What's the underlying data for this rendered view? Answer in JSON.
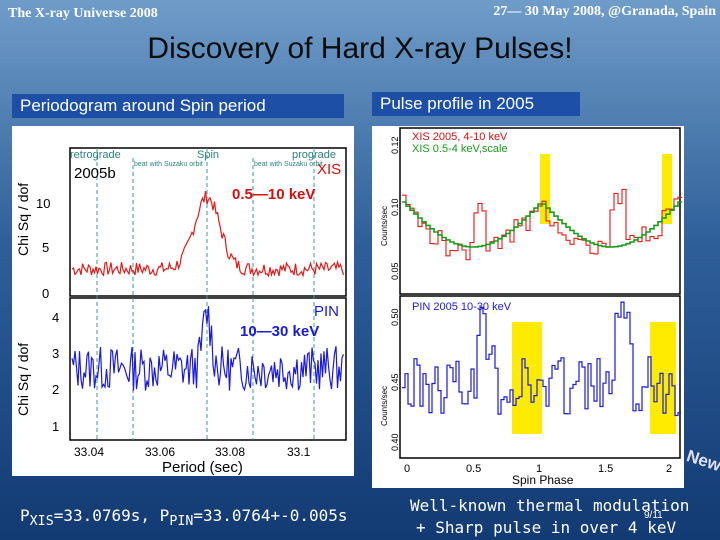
{
  "header": {
    "left": "The X-ray Universe 2008",
    "right": "27— 30 May 2008, @Granada, Spain"
  },
  "slide_title": "Discovery of Hard X-ray Pulses!",
  "left_panel": {
    "label": "Periodogram around Spin period",
    "top": {
      "ylabel": "Chi Sq / dof",
      "tag": "2005b",
      "instrument": "XIS",
      "energy": "0.5—10 keV",
      "yticks": [
        "0",
        "5",
        "10"
      ],
      "markers": {
        "retrograde": "retrograde",
        "spin": "Spin",
        "prograde": "prograde",
        "beat_left": "beat with Suzaku orbit",
        "beat_right": "beat with Suzaku orbit"
      }
    },
    "bottom": {
      "ylabel": "Chi Sq / dof",
      "instrument": "PIN",
      "energy": "10—30 keV",
      "yticks": [
        "1",
        "2",
        "3",
        "4"
      ],
      "xlabel": "Period (sec)",
      "xticks": [
        "33.04",
        "33.06",
        "33.08",
        "33.1"
      ]
    },
    "caption_html": "P<sub>XIS</sub>=33.0769s,  P<sub>PIN</sub>=33.0764+-0.005s"
  },
  "right_panel": {
    "label": "Pulse profile in 2005",
    "top": {
      "legend1": "XIS 2005, 4-10 keV",
      "legend2": "XIS 0.5-4 keV,scale",
      "ylabel": "Counts/sec",
      "yticks": [
        "0.05",
        "0.10",
        "0.12"
      ]
    },
    "bottom": {
      "legend": "PIN 2005 10-30 keV",
      "ylabel": "Counts/sec",
      "yticks": [
        "0.40",
        "0.45",
        "0.50"
      ],
      "xlabel": "Spin Phase",
      "xticks": [
        "0",
        "0.5",
        "1",
        "1.5",
        "2"
      ]
    },
    "new_badge": "New!",
    "caption_line1": "Well-known thermal modulation",
    "caption_line2": "+ Sharp pulse in over 4 keV",
    "page_number": "9/11"
  },
  "colors": {
    "xis_curve": "#e21a1a",
    "pin_curve": "#1a1ad8",
    "highlight": "#ffeb00",
    "green_curve": "#1a9a1a"
  }
}
